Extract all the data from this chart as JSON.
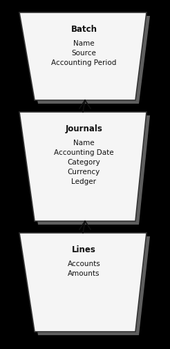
{
  "background_color": "#000000",
  "boxes": [
    {
      "title": "Batch",
      "fields": [
        "Name",
        "Source",
        "Accounting Period"
      ]
    },
    {
      "title": "Journals",
      "fields": [
        "Name",
        "Accounting Date",
        "Category",
        "Currency",
        "Ledger"
      ]
    },
    {
      "title": "Lines",
      "fields": [
        "Accounts",
        "Amounts"
      ]
    }
  ],
  "trap_fill_top": "#f5f5f5",
  "trap_fill_bot": "#d0d0d0",
  "trap_edge": "#333333",
  "trap_shadow_color": "#777777",
  "title_fontsize": 8.5,
  "field_fontsize": 7.5,
  "arrow_color": "#111111",
  "fig_w": 2.46,
  "fig_h": 5.05,
  "dpi": 100
}
